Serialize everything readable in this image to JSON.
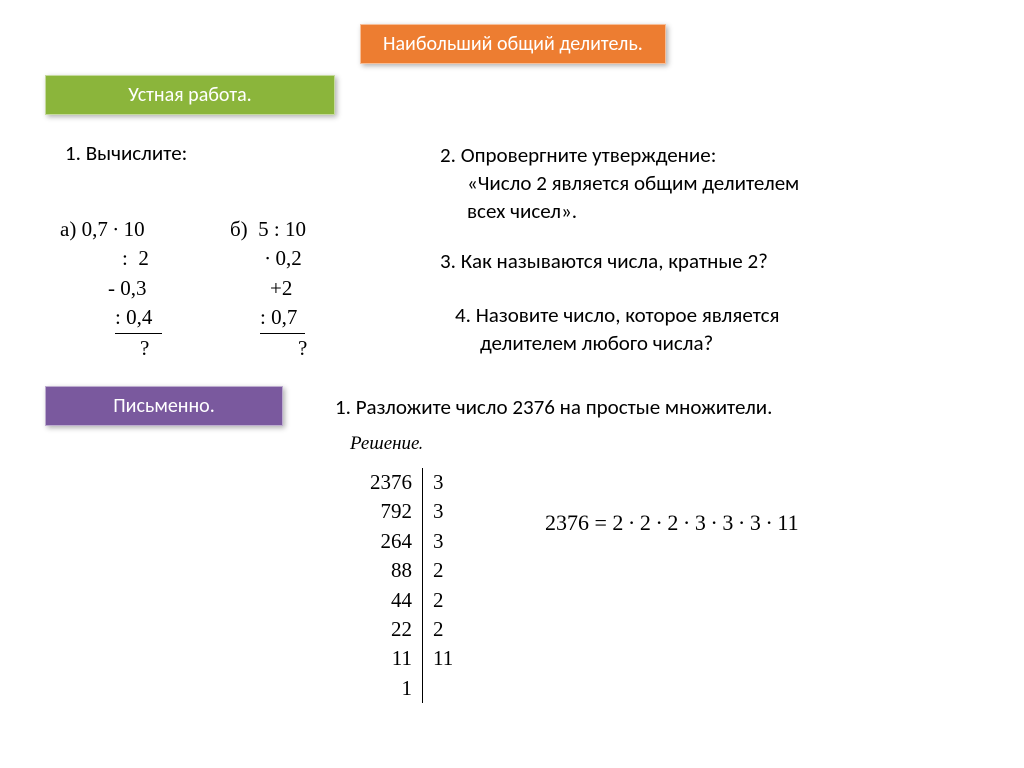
{
  "colors": {
    "orange": "#ed7d31",
    "green": "#8bb53b",
    "purple": "#7a599e",
    "text": "#000000",
    "white": "#ffffff"
  },
  "title": "Наибольший общий делитель.",
  "oral_label": "Устная работа.",
  "written_label": "Письменно.",
  "task1_header": "1. Вычислите:",
  "chain_a": {
    "label": "а) 0,7 ∙ 10",
    "l2": ":  2",
    "l3": "- 0,3",
    "l4": ": 0,4",
    "q": "?"
  },
  "chain_b": {
    "label": "б)  5 : 10",
    "l2": "∙ 0,2",
    "l3": "+2",
    "l4": ": 0,7",
    "q": "?"
  },
  "task2_l1": "2. Опровергните утверждение:",
  "task2_l2": "«Число 2 является общим делителем",
  "task2_l3": "всех чисел».",
  "task3": "3. Как называются числа, кратные 2?",
  "task4_l1": "4. Назовите число, которое является",
  "task4_l2": "делителем любого числа?",
  "written_task": "1. Разложите число 2376 на простые множители.",
  "solution_label": "Решение.",
  "factor_left": [
    "2376",
    "792",
    "264",
    "88",
    "44",
    "22",
    "11",
    "1"
  ],
  "factor_right": [
    "3",
    "3",
    "3",
    "2",
    "2",
    "2",
    "11"
  ],
  "result": "2376 = 2 ∙ 2 ∙ 2 ∙ 3 ∙ 3 ∙ 3 ∙ 11"
}
